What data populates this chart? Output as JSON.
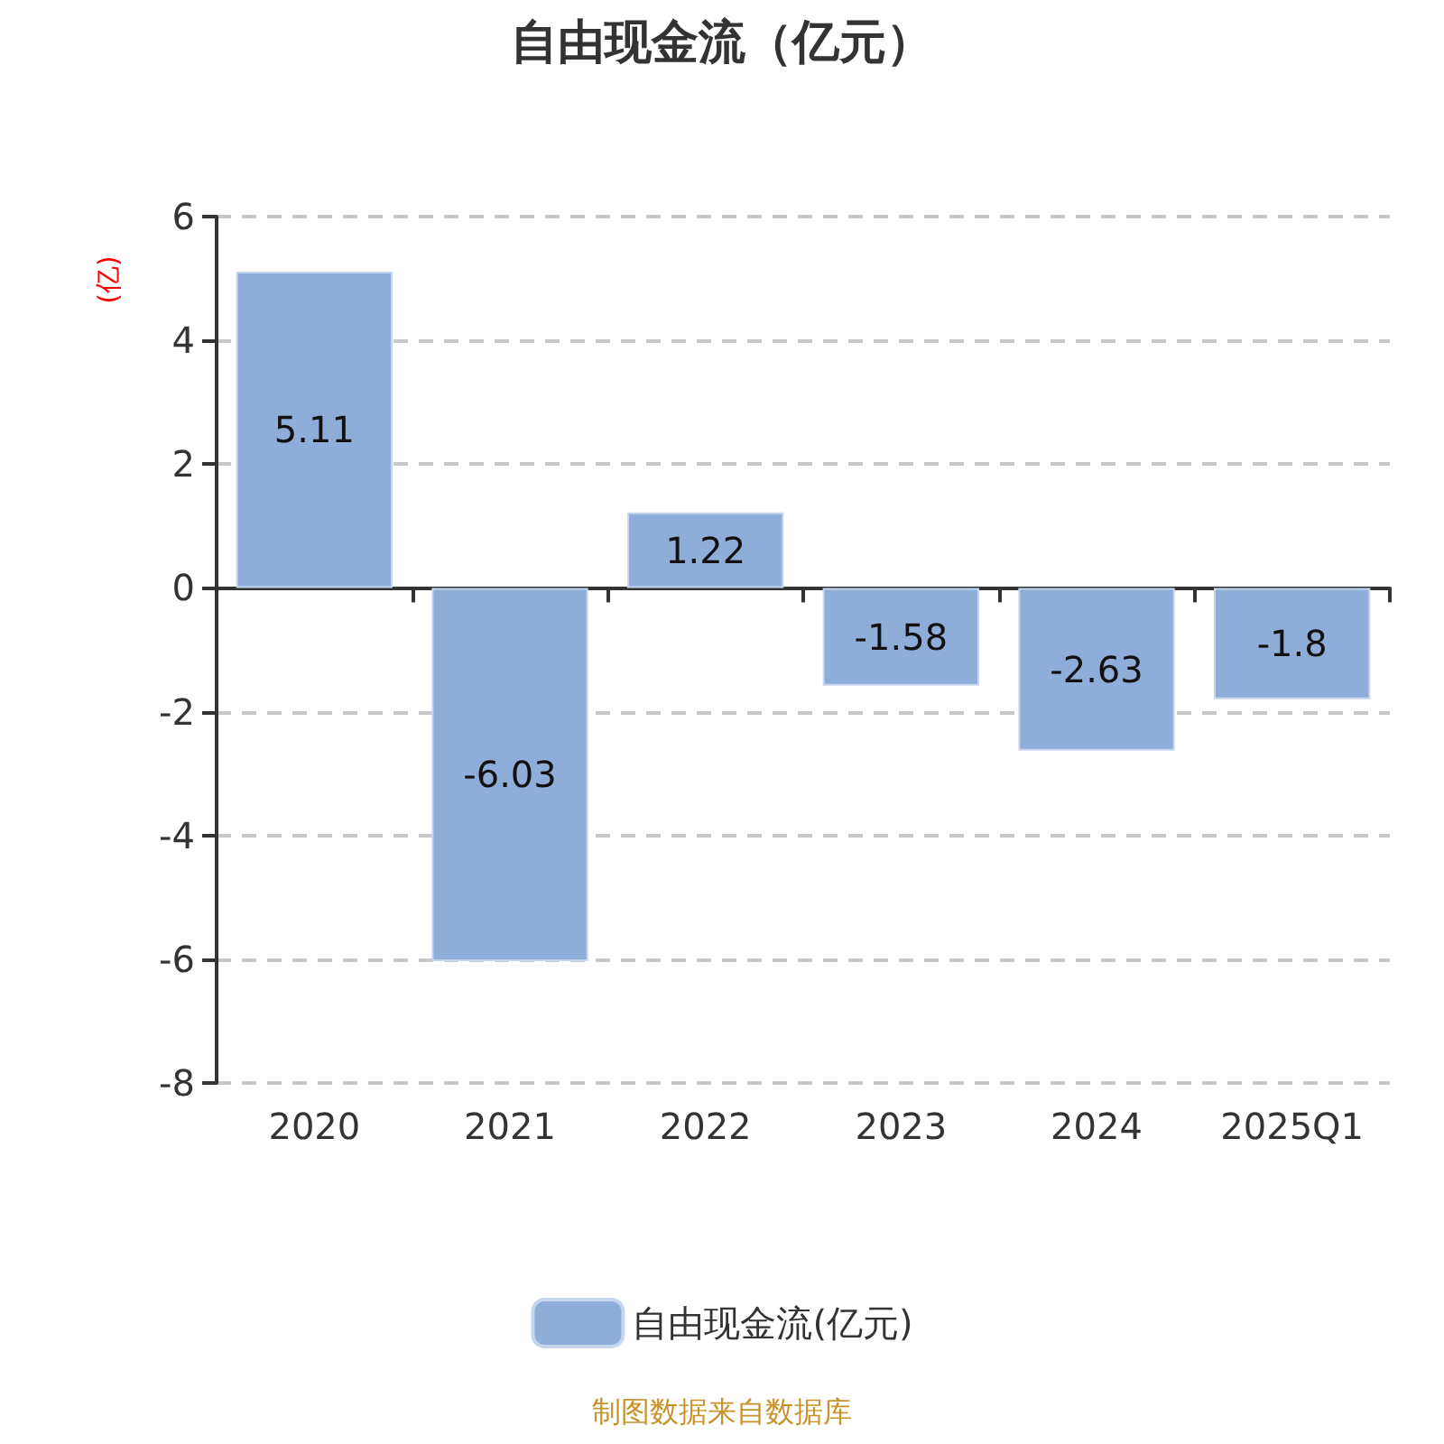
{
  "chart_data": {
    "type": "bar",
    "title": "自由现金流（亿元）",
    "ylabel": "(亿)",
    "categories": [
      "2020",
      "2021",
      "2022",
      "2023",
      "2024",
      "2025Q1"
    ],
    "series": [
      {
        "name": "自由现金流(亿元)",
        "color": "#8eaed9",
        "values": [
          5.11,
          -6.03,
          1.22,
          -1.58,
          -2.63,
          -1.8
        ]
      }
    ],
    "ylim": [
      -8,
      6
    ],
    "yticks": [
      -8,
      -6,
      -4,
      -2,
      0,
      2,
      4,
      6
    ],
    "grid": "y",
    "legend": "bottom",
    "data_labels": true,
    "annotations": [
      "制图数据来自数据库"
    ]
  }
}
